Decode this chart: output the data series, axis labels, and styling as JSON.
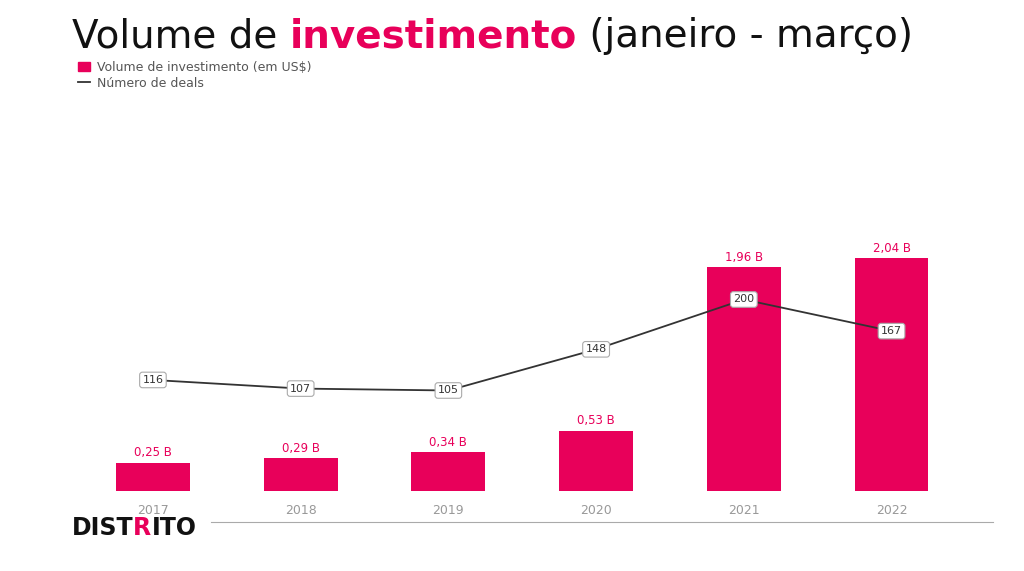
{
  "years": [
    "2017",
    "2018",
    "2019",
    "2020",
    "2021",
    "2022"
  ],
  "bar_values": [
    0.25,
    0.29,
    0.34,
    0.53,
    1.96,
    2.04
  ],
  "bar_labels": [
    "0,25 B",
    "0,29 B",
    "0,34 B",
    "0,53 B",
    "1,96 B",
    "2,04 B"
  ],
  "line_values": [
    116,
    107,
    105,
    148,
    200,
    167
  ],
  "bar_color": "#E8005A",
  "line_color": "#333333",
  "background_color": "#FFFFFF",
  "title_part1": "Volume de ",
  "title_part2": "investimento",
  "title_part3": " (janeiro - março)",
  "legend_bar_label": "Volume de investimento (em US$)",
  "legend_line_label": "Número de deals",
  "title_color1": "#111111",
  "title_color2": "#E8005A",
  "title_fontsize": 28,
  "legend_fontsize": 9,
  "bar_label_fontsize": 8.5,
  "line_label_fontsize": 8,
  "axis_tick_fontsize": 9,
  "bar_label_color": "#E8005A",
  "logo_fontsize": 17,
  "logo_color": "#111111",
  "logo_r_color": "#E8005A",
  "separator_color": "#aaaaaa"
}
